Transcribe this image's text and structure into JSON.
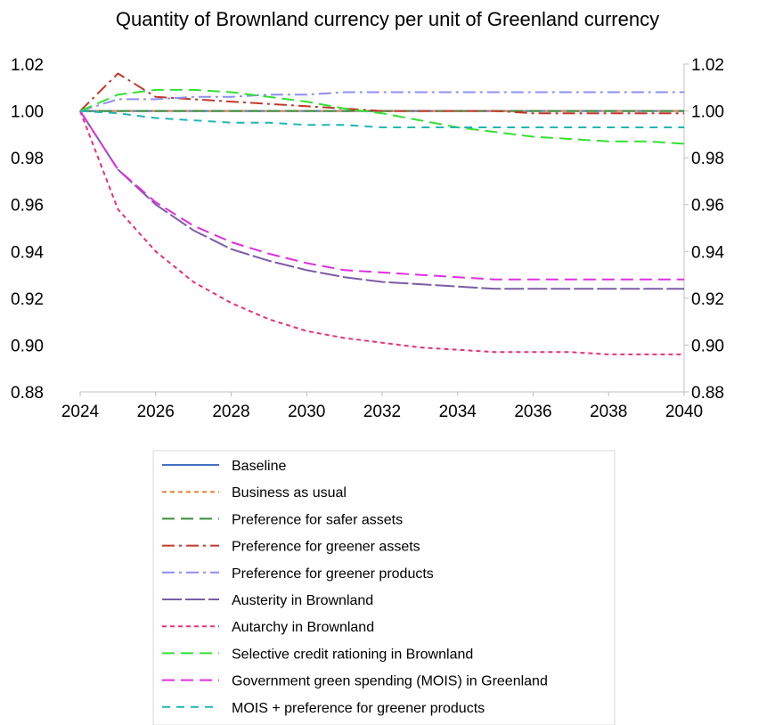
{
  "chart_data": {
    "type": "line",
    "title": "Quantity of Brownland currency per unit of Greenland currency",
    "xlabel": "",
    "ylabel": "",
    "xlim": [
      2024,
      2040
    ],
    "ylim": [
      0.88,
      1.02
    ],
    "x_ticks": [
      "2024",
      "2026",
      "2028",
      "2030",
      "2032",
      "2034",
      "2036",
      "2038",
      "2040"
    ],
    "y_ticks": [
      "1.02",
      "1.00",
      "0.98",
      "0.96",
      "0.94",
      "0.92",
      "0.90",
      "0.88"
    ],
    "secondary_y_axis": true,
    "grid": false,
    "legend_position": "bottom",
    "x": [
      2024,
      2025,
      2026,
      2027,
      2028,
      2029,
      2030,
      2031,
      2032,
      2033,
      2034,
      2035,
      2036,
      2037,
      2038,
      2039,
      2040
    ],
    "series": [
      {
        "name": "Baseline",
        "color": "#4472c4",
        "dash": "solid",
        "values": [
          1.0,
          1.0,
          1.0,
          1.0,
          1.0,
          1.0,
          1.0,
          1.0,
          1.0,
          1.0,
          1.0,
          1.0,
          1.0,
          1.0,
          1.0,
          1.0,
          1.0
        ]
      },
      {
        "name": "Business as usual",
        "color": "#ed7d31",
        "dash": "short",
        "values": [
          1.0,
          1.0,
          1.0,
          1.0,
          1.0,
          1.0,
          1.0,
          1.0,
          1.0,
          1.0,
          1.0,
          1.0,
          1.0,
          1.0,
          1.0,
          1.0,
          1.0
        ]
      },
      {
        "name": "Preference for safer assets",
        "color": "#3a8c3a",
        "dash": "long",
        "values": [
          1.0,
          1.0,
          1.0,
          1.0,
          1.0,
          1.0,
          1.0,
          1.0,
          1.0,
          1.0,
          1.0,
          1.0,
          1.0,
          1.0,
          1.0,
          1.0,
          1.0
        ]
      },
      {
        "name": "Preference for greener assets",
        "color": "#c0392b",
        "dash": "dashdot",
        "values": [
          1.0,
          1.016,
          1.006,
          1.005,
          1.004,
          1.003,
          1.002,
          1.001,
          1.0,
          1.0,
          1.0,
          1.0,
          0.999,
          0.999,
          0.999,
          0.999,
          0.999
        ]
      },
      {
        "name": "Preference for greener products",
        "color": "#8e8ef0",
        "dash": "dashdot",
        "values": [
          1.0,
          1.005,
          1.005,
          1.006,
          1.006,
          1.007,
          1.007,
          1.008,
          1.008,
          1.008,
          1.008,
          1.008,
          1.008,
          1.008,
          1.008,
          1.008,
          1.008
        ]
      },
      {
        "name": "Austerity in Brownland",
        "color": "#7d5ba6",
        "dash": "longsolid",
        "values": [
          1.0,
          0.975,
          0.96,
          0.949,
          0.941,
          0.936,
          0.932,
          0.929,
          0.927,
          0.926,
          0.925,
          0.924,
          0.924,
          0.924,
          0.924,
          0.924,
          0.924
        ]
      },
      {
        "name": "Autarchy in Brownland",
        "color": "#e6317c",
        "dash": "short",
        "values": [
          1.0,
          0.958,
          0.94,
          0.927,
          0.918,
          0.911,
          0.906,
          0.903,
          0.901,
          0.899,
          0.898,
          0.897,
          0.897,
          0.897,
          0.896,
          0.896,
          0.896
        ]
      },
      {
        "name": "Selective credit rationing in Brownland",
        "color": "#33e033",
        "dash": "long",
        "values": [
          1.0,
          1.007,
          1.009,
          1.009,
          1.008,
          1.006,
          1.004,
          1.001,
          0.999,
          0.996,
          0.993,
          0.991,
          0.989,
          0.988,
          0.987,
          0.987,
          0.986
        ]
      },
      {
        "name": "Government green spending (MOIS) in Greenland",
        "color": "#e02fe0",
        "dash": "long",
        "values": [
          1.0,
          0.975,
          0.961,
          0.951,
          0.944,
          0.939,
          0.935,
          0.932,
          0.931,
          0.93,
          0.929,
          0.928,
          0.928,
          0.928,
          0.928,
          0.928,
          0.928
        ]
      },
      {
        "name": "MOIS + preference for greener products",
        "color": "#1fb5b5",
        "dash": "medium",
        "values": [
          1.0,
          0.999,
          0.997,
          0.996,
          0.995,
          0.995,
          0.994,
          0.994,
          0.993,
          0.993,
          0.993,
          0.993,
          0.993,
          0.993,
          0.993,
          0.993,
          0.993
        ]
      }
    ]
  }
}
